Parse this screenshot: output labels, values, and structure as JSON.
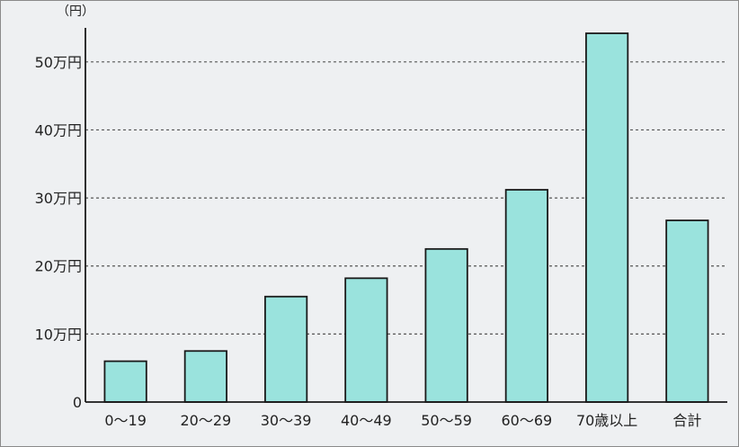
{
  "chart_data": {
    "type": "bar",
    "title": "",
    "xlabel": "",
    "ylabel": "",
    "y_unit_label": "（円）",
    "categories": [
      "0〜19",
      "20〜29",
      "30〜39",
      "40〜49",
      "50〜59",
      "60〜69",
      "70歳以上",
      "合計"
    ],
    "values": [
      60000,
      75000,
      155000,
      182000,
      225000,
      312000,
      542000,
      267000
    ],
    "ylim": [
      0,
      550000
    ],
    "yticks": [
      0,
      100000,
      200000,
      300000,
      400000,
      500000
    ],
    "ytick_labels": [
      "0",
      "10万円",
      "20万円",
      "30万円",
      "40万円",
      "50万円"
    ],
    "grid": true,
    "legend": "none",
    "colors": {
      "bar_fill": "#9ae3dd",
      "bar_stroke": "#1a1a1a",
      "grid": "#555555",
      "axis": "#1a1a1a",
      "background": "#eef0f2"
    }
  }
}
